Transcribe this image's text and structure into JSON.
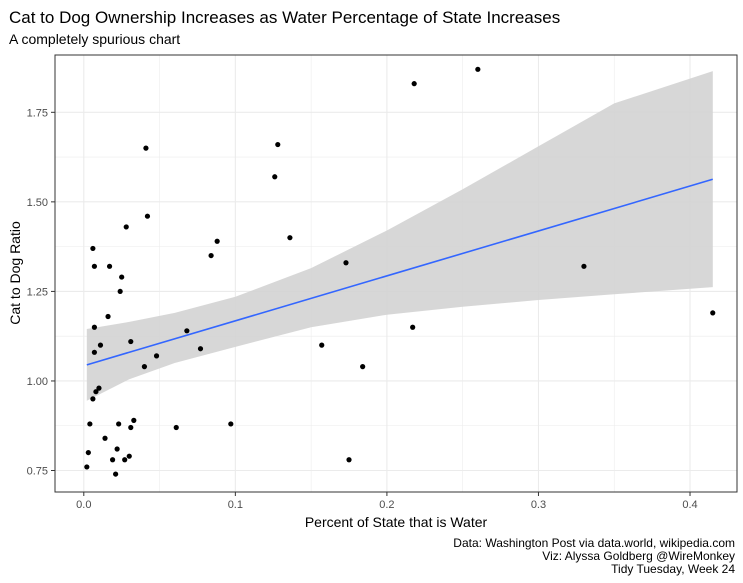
{
  "chart_data": {
    "type": "scatter",
    "title": "Cat to Dog Ownership Increases as Water Percentage of State Increases",
    "subtitle": "A completely spurious chart",
    "xlabel": "Percent of State that is Water",
    "ylabel": "Cat to Dog Ratio",
    "caption": [
      "Data: Washington Post via data.world, wikipedia.com",
      "Viz: Alyssa Goldberg @WireMonkey",
      "Tidy Tuesday, Week 24"
    ],
    "xlim": [
      -0.019,
      0.431
    ],
    "ylim": [
      0.69,
      1.91
    ],
    "x_ticks": [
      0.0,
      0.1,
      0.2,
      0.3,
      0.4
    ],
    "x_tick_labels": [
      "0.0",
      "0.1",
      "0.2",
      "0.3",
      "0.4"
    ],
    "y_ticks": [
      0.75,
      1.0,
      1.25,
      1.5,
      1.75
    ],
    "y_tick_labels": [
      "0.75",
      "1.00",
      "1.25",
      "1.50",
      "1.75"
    ],
    "grid": true,
    "colors": {
      "points": "#000000",
      "trend_line": "#3366ff",
      "confidence_band": "#d3d3d3",
      "grid": "#ebebeb",
      "panel_border": "#333333"
    },
    "points": [
      {
        "x": 0.002,
        "y": 0.76
      },
      {
        "x": 0.003,
        "y": 0.8
      },
      {
        "x": 0.004,
        "y": 0.88
      },
      {
        "x": 0.006,
        "y": 0.95
      },
      {
        "x": 0.006,
        "y": 1.37
      },
      {
        "x": 0.007,
        "y": 1.32
      },
      {
        "x": 0.007,
        "y": 1.08
      },
      {
        "x": 0.007,
        "y": 1.15
      },
      {
        "x": 0.008,
        "y": 0.97
      },
      {
        "x": 0.01,
        "y": 0.98
      },
      {
        "x": 0.011,
        "y": 1.1
      },
      {
        "x": 0.014,
        "y": 0.84
      },
      {
        "x": 0.016,
        "y": 1.18
      },
      {
        "x": 0.017,
        "y": 1.32
      },
      {
        "x": 0.019,
        "y": 0.78
      },
      {
        "x": 0.021,
        "y": 0.74
      },
      {
        "x": 0.022,
        "y": 0.81
      },
      {
        "x": 0.023,
        "y": 0.88
      },
      {
        "x": 0.024,
        "y": 1.25
      },
      {
        "x": 0.025,
        "y": 1.29
      },
      {
        "x": 0.027,
        "y": 0.78
      },
      {
        "x": 0.028,
        "y": 1.43
      },
      {
        "x": 0.03,
        "y": 0.79
      },
      {
        "x": 0.031,
        "y": 0.87
      },
      {
        "x": 0.031,
        "y": 1.11
      },
      {
        "x": 0.033,
        "y": 0.89
      },
      {
        "x": 0.04,
        "y": 1.04
      },
      {
        "x": 0.041,
        "y": 1.65
      },
      {
        "x": 0.042,
        "y": 1.46
      },
      {
        "x": 0.048,
        "y": 1.07
      },
      {
        "x": 0.061,
        "y": 0.87
      },
      {
        "x": 0.068,
        "y": 1.14
      },
      {
        "x": 0.077,
        "y": 1.09
      },
      {
        "x": 0.084,
        "y": 1.35
      },
      {
        "x": 0.088,
        "y": 1.39
      },
      {
        "x": 0.097,
        "y": 0.88
      },
      {
        "x": 0.126,
        "y": 1.57
      },
      {
        "x": 0.128,
        "y": 1.66
      },
      {
        "x": 0.136,
        "y": 1.4
      },
      {
        "x": 0.157,
        "y": 1.1
      },
      {
        "x": 0.173,
        "y": 1.33
      },
      {
        "x": 0.175,
        "y": 0.78
      },
      {
        "x": 0.184,
        "y": 1.04
      },
      {
        "x": 0.217,
        "y": 1.15
      },
      {
        "x": 0.218,
        "y": 1.83
      },
      {
        "x": 0.26,
        "y": 1.87
      },
      {
        "x": 0.33,
        "y": 1.32
      },
      {
        "x": 0.415,
        "y": 1.19
      }
    ],
    "trend": {
      "method": "linear",
      "start": {
        "x": 0.002,
        "y": 1.045
      },
      "end": {
        "x": 0.415,
        "y": 1.563
      }
    },
    "confidence_band": [
      {
        "x": 0.002,
        "lower": 0.945,
        "upper": 1.145
      },
      {
        "x": 0.03,
        "lower": 1.005,
        "upper": 1.165
      },
      {
        "x": 0.06,
        "lower": 1.05,
        "upper": 1.19
      },
      {
        "x": 0.1,
        "lower": 1.095,
        "upper": 1.235
      },
      {
        "x": 0.15,
        "lower": 1.15,
        "upper": 1.315
      },
      {
        "x": 0.2,
        "lower": 1.185,
        "upper": 1.42
      },
      {
        "x": 0.25,
        "lower": 1.207,
        "upper": 1.535
      },
      {
        "x": 0.3,
        "lower": 1.226,
        "upper": 1.655
      },
      {
        "x": 0.35,
        "lower": 1.242,
        "upper": 1.775
      },
      {
        "x": 0.415,
        "lower": 1.262,
        "upper": 1.865
      }
    ]
  }
}
